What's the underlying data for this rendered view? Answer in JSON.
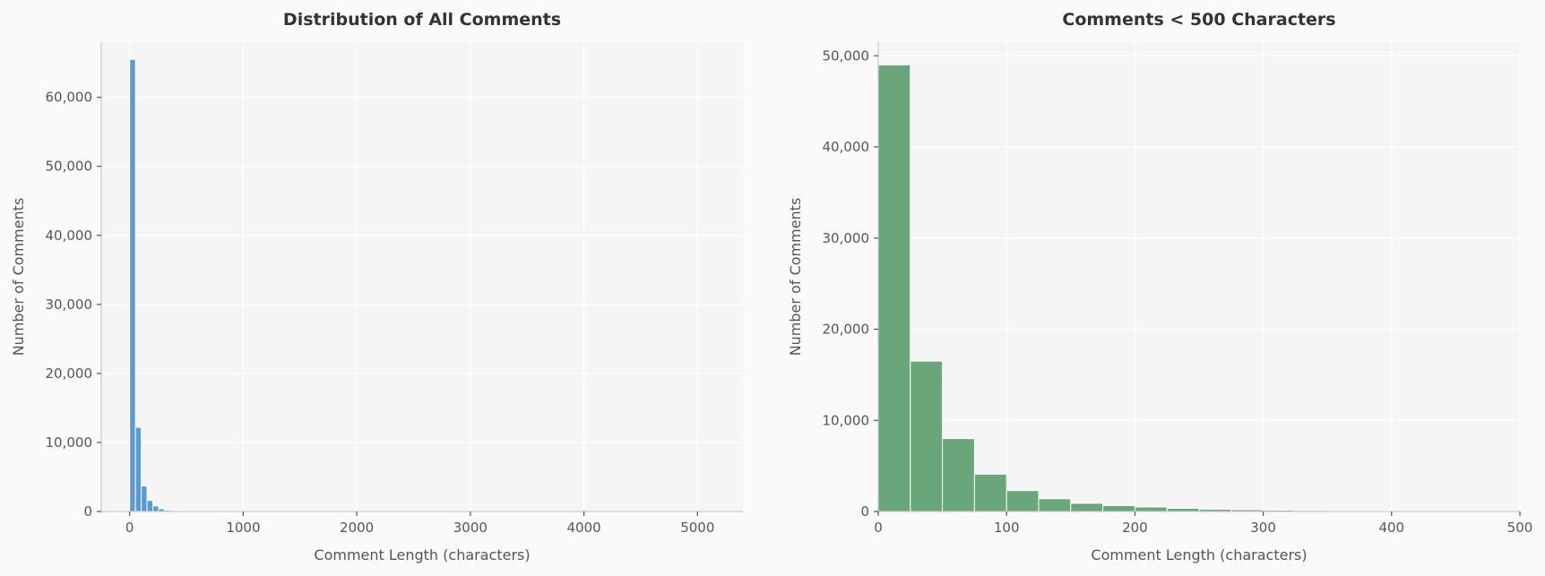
{
  "colors": {
    "background": "#fafafa",
    "plot_background": "#f5f5f5",
    "grid": "#ffffff",
    "spine": "#cccccc",
    "text": "#333333",
    "tick_text": "#555555",
    "bar_edge": "#ffffff"
  },
  "chart_data": [
    {
      "type": "bar",
      "title": "Distribution of All Comments",
      "xlabel": "Comment Length (characters)",
      "ylabel": "Number of Comments",
      "color": "#5b9bd5",
      "grid": true,
      "xlim": [
        -250,
        5400
      ],
      "ylim": [
        0,
        68000
      ],
      "xticks": [
        0,
        1000,
        2000,
        3000,
        4000,
        5000
      ],
      "xtick_labels": [
        "0",
        "1000",
        "2000",
        "3000",
        "4000",
        "5000"
      ],
      "yticks": [
        0,
        10000,
        20000,
        30000,
        40000,
        50000,
        60000
      ],
      "ytick_labels": [
        "0",
        "10,000",
        "20,000",
        "30,000",
        "40,000",
        "50,000",
        "60,000"
      ],
      "bin_start": 0,
      "bin_width": 51,
      "values": [
        65500,
        12200,
        3700,
        1600,
        800,
        400,
        200,
        150,
        120,
        100,
        80,
        60,
        50,
        40,
        30,
        25,
        20,
        15,
        10,
        8
      ]
    },
    {
      "type": "bar",
      "title": "Comments < 500 Characters",
      "xlabel": "Comment Length (characters)",
      "ylabel": "Number of Comments",
      "color": "#69a77b",
      "grid": true,
      "xlim": [
        0,
        500
      ],
      "ylim": [
        0,
        51500
      ],
      "xticks": [
        0,
        100,
        200,
        300,
        400,
        500
      ],
      "xtick_labels": [
        "0",
        "100",
        "200",
        "300",
        "400",
        "500"
      ],
      "yticks": [
        0,
        10000,
        20000,
        30000,
        40000,
        50000
      ],
      "ytick_labels": [
        "0",
        "10,000",
        "20,000",
        "30,000",
        "40,000",
        "50,000"
      ],
      "bin_start": 0,
      "bin_width": 25,
      "values": [
        49000,
        16500,
        8000,
        4100,
        2300,
        1400,
        900,
        650,
        500,
        350,
        250,
        200,
        150,
        120,
        100,
        80,
        60,
        50,
        40,
        30
      ]
    }
  ]
}
